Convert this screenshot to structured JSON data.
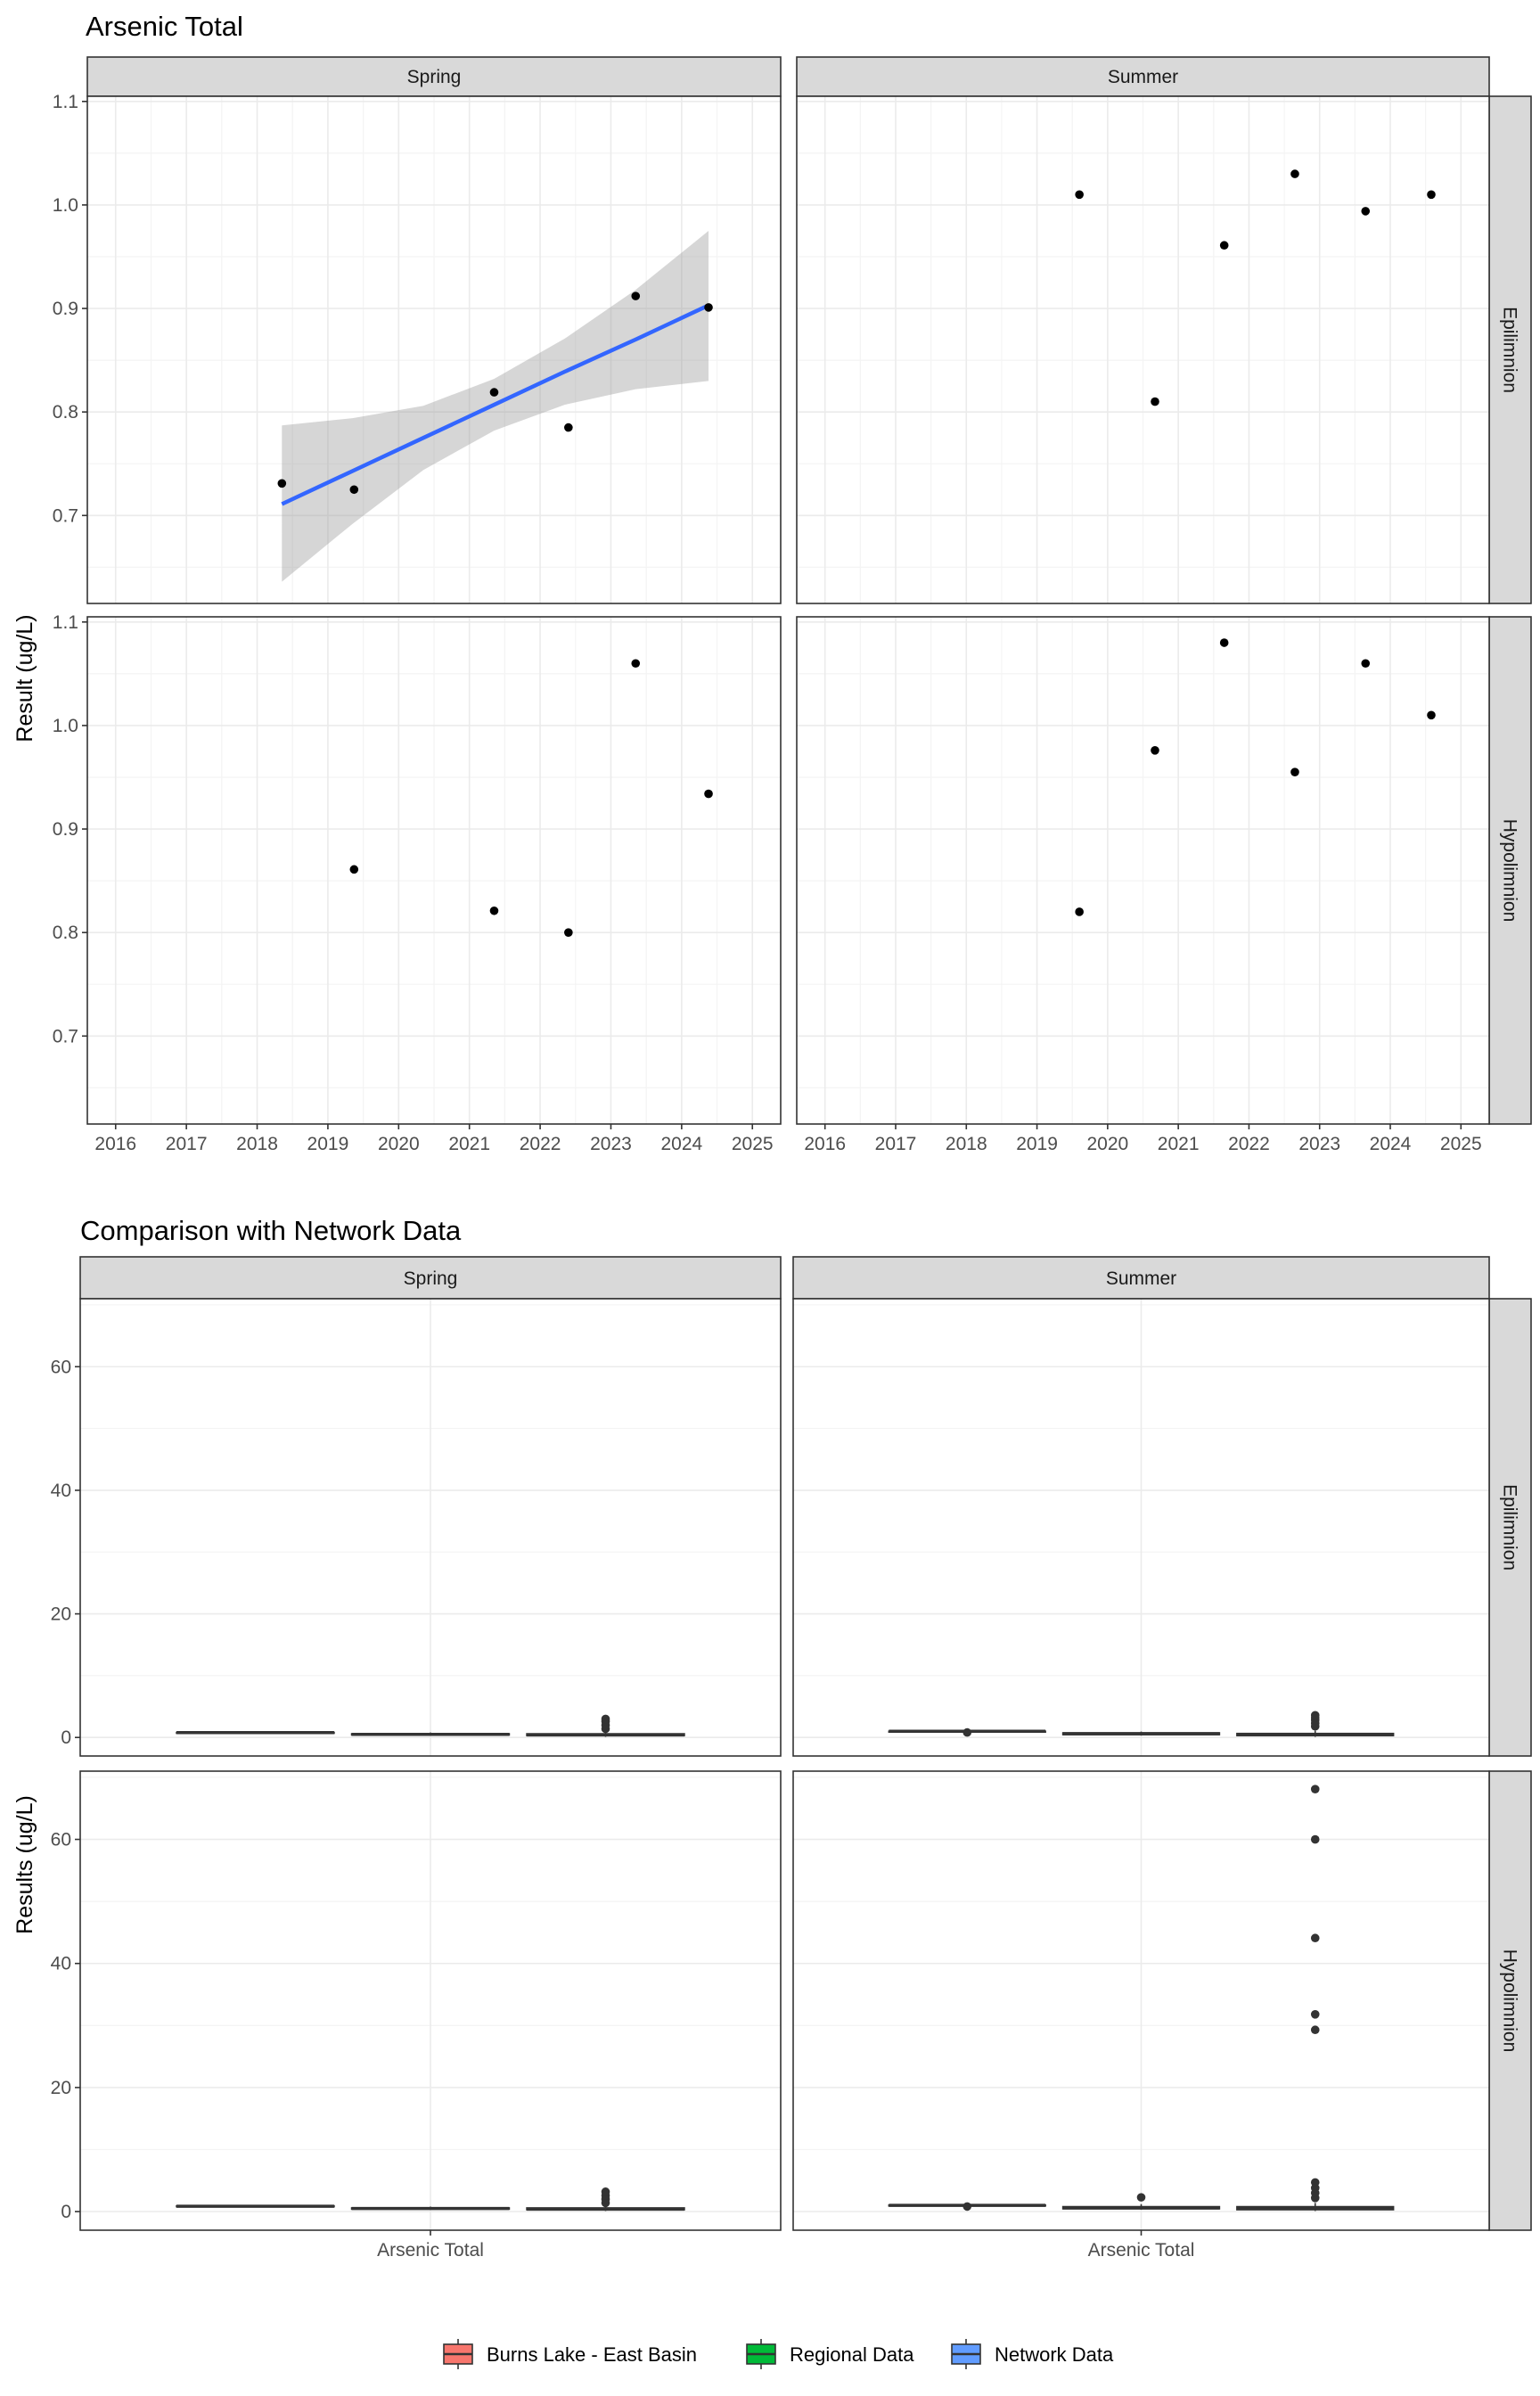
{
  "chart_data": [
    {
      "type": "scatter",
      "title": "Arsenic Total",
      "ylabel": "Result (ug/L)",
      "xlabel": "",
      "xlim": [
        2015.6,
        2025.4
      ],
      "ylim": [
        0.615,
        1.105
      ],
      "x_ticks": [
        2016,
        2017,
        2018,
        2019,
        2020,
        2021,
        2022,
        2023,
        2024,
        2025
      ],
      "y_ticks": [
        0.7,
        0.8,
        0.9,
        1.0,
        1.1
      ],
      "y_tick_labels": [
        "0.7",
        "0.8",
        "0.9",
        "1.0",
        "1.1"
      ],
      "column_strips": [
        "Spring",
        "Summer"
      ],
      "row_strips": [
        "Epilimnion",
        "Hypolimnion"
      ],
      "grid": true,
      "panels": [
        {
          "column": "Spring",
          "row": "Epilimnion",
          "points": [
            {
              "x": 2018.35,
              "y": 0.731
            },
            {
              "x": 2019.37,
              "y": 0.725
            },
            {
              "x": 2021.35,
              "y": 0.819
            },
            {
              "x": 2022.4,
              "y": 0.785
            },
            {
              "x": 2023.35,
              "y": 0.912
            },
            {
              "x": 2024.38,
              "y": 0.901
            }
          ],
          "trend": {
            "x": [
              2018.35,
              2019.35,
              2020.35,
              2021.35,
              2022.35,
              2023.35,
              2024.38
            ],
            "fit": [
              0.711,
              0.743,
              0.775,
              0.807,
              0.839,
              0.87,
              0.903
            ],
            "lower": [
              0.636,
              0.692,
              0.744,
              0.782,
              0.807,
              0.822,
              0.83
            ],
            "upper": [
              0.787,
              0.794,
              0.806,
              0.832,
              0.871,
              0.918,
              0.975
            ]
          }
        },
        {
          "column": "Summer",
          "row": "Epilimnion",
          "points": [
            {
              "x": 2019.6,
              "y": 1.01
            },
            {
              "x": 2020.67,
              "y": 0.81
            },
            {
              "x": 2021.65,
              "y": 0.961
            },
            {
              "x": 2022.65,
              "y": 1.03
            },
            {
              "x": 2023.65,
              "y": 0.994
            },
            {
              "x": 2024.58,
              "y": 1.01
            }
          ]
        },
        {
          "column": "Spring",
          "row": "Hypolimnion",
          "points": [
            {
              "x": 2019.37,
              "y": 0.861
            },
            {
              "x": 2021.35,
              "y": 0.821
            },
            {
              "x": 2022.4,
              "y": 0.8
            },
            {
              "x": 2023.35,
              "y": 1.06
            },
            {
              "x": 2024.38,
              "y": 0.934
            }
          ]
        },
        {
          "column": "Summer",
          "row": "Hypolimnion",
          "points": [
            {
              "x": 2019.6,
              "y": 0.82
            },
            {
              "x": 2020.67,
              "y": 0.976
            },
            {
              "x": 2021.65,
              "y": 1.08
            },
            {
              "x": 2022.65,
              "y": 0.955
            },
            {
              "x": 2023.65,
              "y": 1.06
            },
            {
              "x": 2024.58,
              "y": 1.01
            }
          ]
        }
      ]
    },
    {
      "type": "box",
      "title": "Comparison with Network Data",
      "ylabel": "Results (ug/L)",
      "xlabel": "",
      "x_categories": [
        "Arsenic Total"
      ],
      "ylim": [
        -3,
        71
      ],
      "y_ticks": [
        0,
        20,
        40,
        60
      ],
      "y_tick_labels": [
        "0",
        "20",
        "40",
        "60"
      ],
      "column_strips": [
        "Spring",
        "Summer"
      ],
      "row_strips": [
        "Epilimnion",
        "Hypolimnion"
      ],
      "grid": true,
      "legend": {
        "position": "bottom",
        "entries": [
          {
            "name": "Burns Lake - East Basin",
            "color": "#F8766D"
          },
          {
            "name": "Regional Data",
            "color": "#00BA38"
          },
          {
            "name": "Network Data",
            "color": "#619CFF"
          }
        ]
      },
      "panels": [
        {
          "column": "Spring",
          "row": "Epilimnion",
          "groups": [
            {
              "group": "Burns Lake - East Basin",
              "min": 0.72,
              "q1": 0.74,
              "median": 0.78,
              "q3": 0.82,
              "max": 0.91,
              "outliers": []
            },
            {
              "group": "Regional Data",
              "min": 0.3,
              "q1": 0.4,
              "median": 0.5,
              "q3": 0.6,
              "max": 0.8,
              "outliers": []
            },
            {
              "group": "Network Data",
              "min": 0.1,
              "q1": 0.3,
              "median": 0.4,
              "q3": 0.6,
              "max": 1.0,
              "outliers": [
                1.4,
                2.0,
                2.6,
                3.0
              ]
            }
          ]
        },
        {
          "column": "Summer",
          "row": "Epilimnion",
          "groups": [
            {
              "group": "Burns Lake - East Basin",
              "min": 0.81,
              "q1": 0.96,
              "median": 1.0,
              "q3": 1.01,
              "max": 1.03,
              "outliers": [
                0.81
              ]
            },
            {
              "group": "Regional Data",
              "min": 0.3,
              "q1": 0.45,
              "median": 0.6,
              "q3": 0.75,
              "max": 0.95,
              "outliers": []
            },
            {
              "group": "Network Data",
              "min": 0.1,
              "q1": 0.3,
              "median": 0.45,
              "q3": 0.65,
              "max": 1.1,
              "outliers": [
                1.8,
                2.3,
                2.8,
                3.2,
                3.6
              ]
            }
          ]
        },
        {
          "column": "Spring",
          "row": "Hypolimnion",
          "groups": [
            {
              "group": "Burns Lake - East Basin",
              "min": 0.8,
              "q1": 0.82,
              "median": 0.86,
              "q3": 0.93,
              "max": 1.06,
              "outliers": []
            },
            {
              "group": "Regional Data",
              "min": 0.3,
              "q1": 0.4,
              "median": 0.5,
              "q3": 0.6,
              "max": 0.8,
              "outliers": []
            },
            {
              "group": "Network Data",
              "min": 0.1,
              "q1": 0.3,
              "median": 0.4,
              "q3": 0.6,
              "max": 1.0,
              "outliers": [
                1.4,
                2.0,
                2.6,
                3.2
              ]
            }
          ]
        },
        {
          "column": "Summer",
          "row": "Hypolimnion",
          "groups": [
            {
              "group": "Burns Lake - East Basin",
              "min": 0.82,
              "q1": 0.96,
              "median": 1.0,
              "q3": 1.05,
              "max": 1.08,
              "outliers": [
                0.82
              ]
            },
            {
              "group": "Regional Data",
              "min": 0.3,
              "q1": 0.45,
              "median": 0.6,
              "q3": 0.8,
              "max": 1.2,
              "outliers": [
                2.3
              ]
            },
            {
              "group": "Network Data",
              "min": 0.1,
              "q1": 0.3,
              "median": 0.5,
              "q3": 0.8,
              "max": 1.4,
              "outliers": [
                2.2,
                3.0,
                3.8,
                4.7,
                29.3,
                31.8,
                44.1,
                60.0,
                68.1
              ]
            }
          ]
        }
      ]
    }
  ]
}
